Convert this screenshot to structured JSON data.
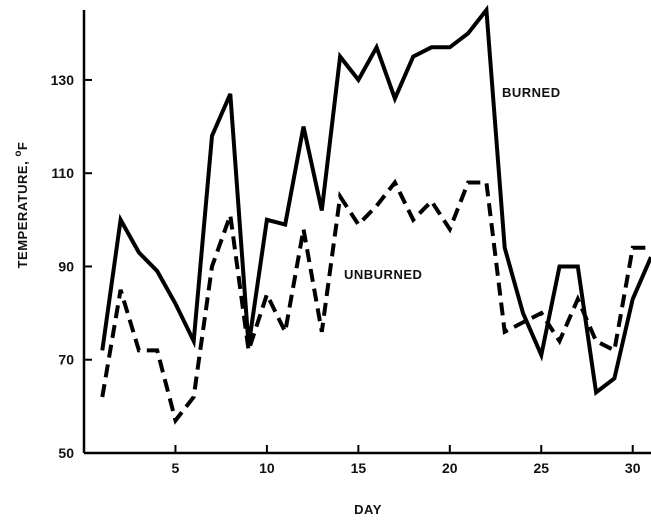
{
  "chart_data": {
    "type": "line",
    "title": "",
    "xlabel": "DAY",
    "ylabel": "TEMPERATURE, ",
    "ylabel_unit_superscript": "o",
    "ylabel_unit": "F",
    "xlim": [
      0,
      31
    ],
    "ylim": [
      50,
      145
    ],
    "x_ticks": [
      5,
      10,
      15,
      20,
      25,
      30
    ],
    "y_ticks": [
      50,
      70,
      90,
      110,
      130
    ],
    "grid": false,
    "legend": "none",
    "series": [
      {
        "name": "BURNED",
        "style": "solid",
        "color": "#000000",
        "points": [
          [
            1,
            72
          ],
          [
            2,
            100
          ],
          [
            3,
            93
          ],
          [
            4,
            89
          ],
          [
            5,
            82
          ],
          [
            6,
            74
          ],
          [
            7,
            118
          ],
          [
            8,
            127
          ],
          [
            9,
            73
          ],
          [
            10,
            100
          ],
          [
            11,
            99
          ],
          [
            12,
            120
          ],
          [
            13,
            102
          ],
          [
            14,
            135
          ],
          [
            15,
            130
          ],
          [
            16,
            137
          ],
          [
            17,
            126
          ],
          [
            18,
            135
          ],
          [
            19,
            137
          ],
          [
            20,
            137
          ],
          [
            21,
            140
          ],
          [
            22,
            145
          ],
          [
            23,
            94
          ],
          [
            24,
            80
          ],
          [
            25,
            71
          ],
          [
            26,
            90
          ],
          [
            27,
            90
          ],
          [
            28,
            63
          ],
          [
            29,
            66
          ],
          [
            30,
            83
          ],
          [
            31,
            92
          ]
        ]
      },
      {
        "name": "UNBURNED",
        "style": "dashed",
        "color": "#000000",
        "points": [
          [
            1,
            62
          ],
          [
            2,
            85
          ],
          [
            3,
            72
          ],
          [
            4,
            72
          ],
          [
            5,
            57
          ],
          [
            6,
            62
          ],
          [
            7,
            90
          ],
          [
            8,
            101
          ],
          [
            9,
            72
          ],
          [
            10,
            84
          ],
          [
            11,
            76
          ],
          [
            12,
            98
          ],
          [
            13,
            76
          ],
          [
            14,
            105
          ],
          [
            15,
            99
          ],
          [
            16,
            103
          ],
          [
            17,
            108
          ],
          [
            18,
            100
          ],
          [
            19,
            104
          ],
          [
            20,
            98
          ],
          [
            21,
            108
          ],
          [
            22,
            108
          ],
          [
            23,
            76
          ],
          [
            24,
            78
          ],
          [
            25,
            80
          ],
          [
            26,
            74
          ],
          [
            27,
            83
          ],
          [
            28,
            74
          ],
          [
            29,
            72
          ],
          [
            30,
            94
          ],
          [
            31,
            94
          ]
        ]
      }
    ]
  }
}
